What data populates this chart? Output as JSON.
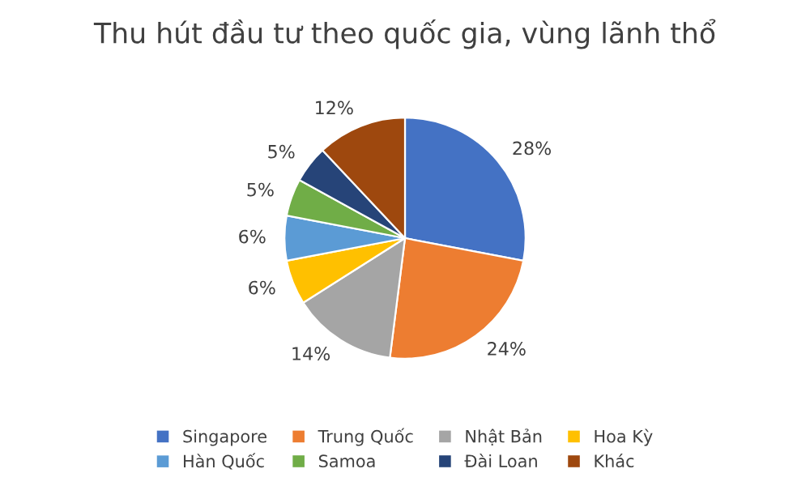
{
  "chart_data": {
    "type": "pie",
    "title": "Thu hút đầu tư theo quốc gia, vùng lãnh thổ",
    "categories": [
      "Singapore",
      "Trung Quốc",
      "Nhật Bản",
      "Hoa Kỳ",
      "Hàn Quốc",
      "Samoa",
      "Đài Loan",
      "Khác"
    ],
    "values": [
      28,
      24,
      14,
      6,
      6,
      5,
      5,
      12
    ],
    "colors": [
      "#4472c4",
      "#ed7d31",
      "#a5a5a5",
      "#ffc000",
      "#5b9bd5",
      "#70ad47",
      "#264478",
      "#9e480e"
    ],
    "value_labels": [
      "28%",
      "24%",
      "14%",
      "6%",
      "6%",
      "5%",
      "5%",
      "12%"
    ],
    "legend": "bottom"
  }
}
